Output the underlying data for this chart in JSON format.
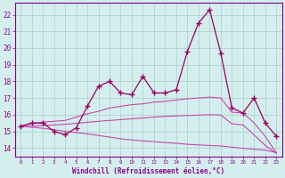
{
  "xlabel": "Windchill (Refroidissement éolien,°C)",
  "x": [
    0,
    1,
    2,
    3,
    4,
    5,
    6,
    7,
    8,
    9,
    10,
    11,
    12,
    13,
    14,
    15,
    16,
    17,
    18,
    19,
    20,
    21,
    22,
    23
  ],
  "y_main": [
    15.3,
    15.5,
    15.5,
    15.0,
    14.8,
    15.2,
    16.5,
    17.7,
    18.0,
    17.3,
    17.2,
    18.3,
    17.3,
    17.3,
    17.5,
    19.8,
    21.5,
    22.3,
    19.7,
    16.4,
    16.1,
    17.0,
    15.5,
    14.7
  ],
  "y_upper": [
    15.3,
    15.45,
    15.55,
    15.6,
    15.65,
    15.85,
    16.05,
    16.2,
    16.4,
    16.5,
    16.6,
    16.65,
    16.75,
    16.8,
    16.88,
    16.95,
    17.0,
    17.05,
    17.0,
    16.15,
    16.1,
    15.5,
    14.7,
    13.7
  ],
  "y_mid": [
    15.3,
    15.3,
    15.35,
    15.38,
    15.42,
    15.48,
    15.54,
    15.6,
    15.65,
    15.7,
    15.75,
    15.8,
    15.85,
    15.9,
    15.92,
    15.95,
    15.97,
    16.0,
    15.98,
    15.45,
    15.38,
    14.78,
    14.15,
    13.68
  ],
  "y_lower": [
    15.3,
    15.25,
    15.18,
    15.1,
    15.0,
    14.92,
    14.85,
    14.75,
    14.65,
    14.55,
    14.48,
    14.42,
    14.38,
    14.32,
    14.28,
    14.22,
    14.18,
    14.15,
    14.12,
    14.05,
    13.98,
    13.92,
    13.87,
    13.72
  ],
  "col_main": "#990066",
  "col_trend": "#cc44aa",
  "bg_color": "#d4eeee",
  "grid_color": "#aacccc",
  "axis_color": "#880088",
  "ylim_min": 13.5,
  "ylim_max": 22.7,
  "yticks": [
    14,
    15,
    16,
    17,
    18,
    19,
    20,
    21,
    22
  ],
  "xticks": [
    0,
    1,
    2,
    3,
    4,
    5,
    6,
    7,
    8,
    9,
    10,
    11,
    12,
    13,
    14,
    15,
    16,
    17,
    18,
    19,
    20,
    21,
    22,
    23
  ]
}
